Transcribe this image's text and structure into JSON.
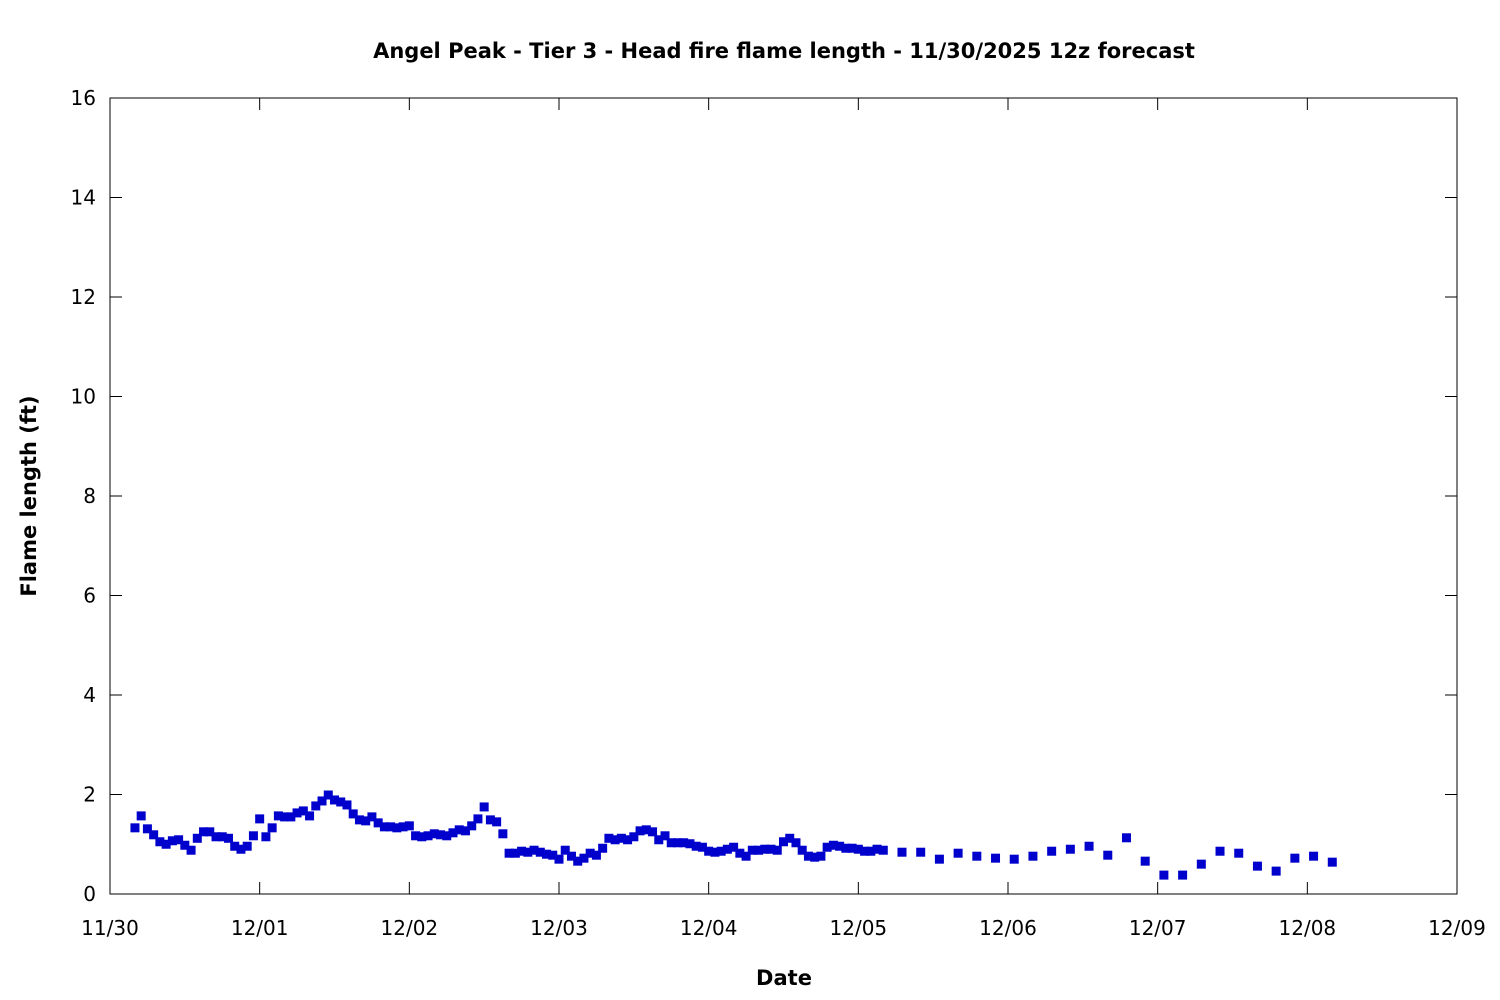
{
  "chart_data": {
    "type": "scatter",
    "title": "Angel Peak - Tier 3 - Head fire flame length - 11/30/2025 12z forecast",
    "xlabel": "Date",
    "ylabel": "Flame length (ft)",
    "x_units": "hours after 11/30 00z",
    "xlim": [
      0,
      216
    ],
    "ylim": [
      0,
      16
    ],
    "grid": false,
    "legend": "none",
    "marker_color": "#0000cc",
    "x_ticks": [
      {
        "value": 0,
        "label": "11/30"
      },
      {
        "value": 24,
        "label": "12/01"
      },
      {
        "value": 48,
        "label": "12/02"
      },
      {
        "value": 72,
        "label": "12/03"
      },
      {
        "value": 96,
        "label": "12/04"
      },
      {
        "value": 120,
        "label": "12/05"
      },
      {
        "value": 144,
        "label": "12/06"
      },
      {
        "value": 168,
        "label": "12/07"
      },
      {
        "value": 192,
        "label": "12/08"
      },
      {
        "value": 216,
        "label": "12/09"
      }
    ],
    "y_ticks": [
      {
        "value": 0,
        "label": "0"
      },
      {
        "value": 2,
        "label": "2"
      },
      {
        "value": 4,
        "label": "4"
      },
      {
        "value": 6,
        "label": "6"
      },
      {
        "value": 8,
        "label": "8"
      },
      {
        "value": 10,
        "label": "10"
      },
      {
        "value": 12,
        "label": "12"
      },
      {
        "value": 14,
        "label": "14"
      },
      {
        "value": 16,
        "label": "16"
      }
    ],
    "series": [
      {
        "name": "Head fire flame length",
        "x": [
          4,
          5,
          6,
          7,
          8,
          9,
          10,
          11,
          12,
          13,
          14,
          15,
          16,
          17,
          18,
          19,
          20,
          21,
          22,
          23,
          24,
          25,
          26,
          27,
          28,
          29,
          30,
          31,
          32,
          33,
          34,
          35,
          36,
          37,
          38,
          39,
          40,
          41,
          42,
          43,
          44,
          45,
          46,
          47,
          48,
          49,
          50,
          51,
          52,
          53,
          54,
          55,
          56,
          57,
          58,
          59,
          60,
          61,
          62,
          63,
          64,
          65,
          66,
          67,
          68,
          69,
          70,
          71,
          72,
          73,
          74,
          75,
          76,
          77,
          78,
          79,
          80,
          81,
          82,
          83,
          84,
          85,
          86,
          87,
          88,
          89,
          90,
          91,
          92,
          93,
          94,
          95,
          96,
          97,
          98,
          99,
          100,
          101,
          102,
          103,
          104,
          105,
          106,
          107,
          108,
          109,
          110,
          111,
          112,
          113,
          114,
          115,
          116,
          117,
          118,
          119,
          120,
          121,
          122,
          123,
          124,
          127,
          130,
          133,
          136,
          139,
          142,
          145,
          148,
          151,
          154,
          157,
          160,
          163,
          166,
          169,
          172,
          175,
          178,
          181,
          184,
          187,
          190,
          193,
          196
        ],
        "y": [
          1.33,
          1.57,
          1.31,
          1.19,
          1.05,
          1.0,
          1.07,
          1.09,
          0.98,
          0.88,
          1.12,
          1.25,
          1.25,
          1.15,
          1.15,
          1.12,
          0.96,
          0.9,
          0.96,
          1.17,
          1.51,
          1.15,
          1.33,
          1.57,
          1.55,
          1.55,
          1.63,
          1.67,
          1.57,
          1.77,
          1.87,
          1.99,
          1.89,
          1.85,
          1.79,
          1.61,
          1.49,
          1.47,
          1.55,
          1.43,
          1.35,
          1.35,
          1.33,
          1.35,
          1.37,
          1.17,
          1.15,
          1.17,
          1.21,
          1.19,
          1.17,
          1.23,
          1.29,
          1.27,
          1.37,
          1.51,
          1.75,
          1.49,
          1.45,
          1.21,
          0.82,
          0.82,
          0.86,
          0.84,
          0.88,
          0.84,
          0.8,
          0.78,
          0.7,
          0.88,
          0.76,
          0.66,
          0.72,
          0.82,
          0.78,
          0.92,
          1.12,
          1.09,
          1.12,
          1.09,
          1.15,
          1.27,
          1.29,
          1.25,
          1.09,
          1.17,
          1.03,
          1.03,
          1.03,
          1.01,
          0.96,
          0.94,
          0.86,
          0.84,
          0.86,
          0.9,
          0.94,
          0.82,
          0.76,
          0.88,
          0.88,
          0.9,
          0.9,
          0.88,
          1.05,
          1.12,
          1.03,
          0.88,
          0.76,
          0.74,
          0.76,
          0.94,
          0.98,
          0.96,
          0.92,
          0.92,
          0.9,
          0.86,
          0.86,
          0.9,
          0.88,
          0.84,
          0.84,
          0.7,
          0.82,
          0.76,
          0.72,
          0.7,
          0.76,
          0.86,
          0.9,
          0.96,
          0.78,
          1.13,
          0.66,
          0.38,
          0.38,
          0.6,
          0.86,
          0.82,
          0.56,
          0.46,
          0.72,
          0.76,
          0.64
        ]
      }
    ]
  }
}
